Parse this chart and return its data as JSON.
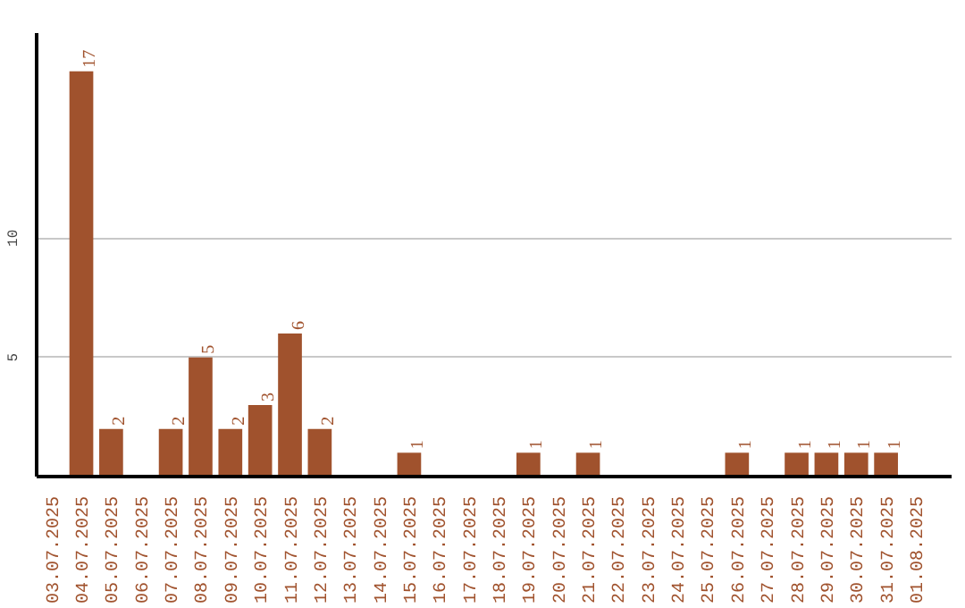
{
  "chart_data": {
    "type": "bar",
    "categories": [
      "03.07.2025",
      "04.07.2025",
      "05.07.2025",
      "06.07.2025",
      "07.07.2025",
      "08.07.2025",
      "09.07.2025",
      "10.07.2025",
      "11.07.2025",
      "12.07.2025",
      "13.07.2025",
      "14.07.2025",
      "15.07.2025",
      "16.07.2025",
      "17.07.2025",
      "18.07.2025",
      "19.07.2025",
      "20.07.2025",
      "21.07.2025",
      "22.07.2025",
      "23.07.2025",
      "24.07.2025",
      "25.07.2025",
      "26.07.2025",
      "27.07.2025",
      "28.07.2025",
      "29.07.2025",
      "30.07.2025",
      "31.07.2025",
      "01.08.2025"
    ],
    "values": [
      0,
      17,
      2,
      0,
      2,
      5,
      2,
      3,
      6,
      2,
      0,
      0,
      1,
      0,
      0,
      0,
      1,
      0,
      1,
      0,
      0,
      0,
      0,
      1,
      0,
      1,
      1,
      1,
      1,
      0
    ],
    "value_labels": [
      null,
      "17",
      "2",
      null,
      "2",
      "5",
      "2",
      "3",
      "6",
      "2",
      null,
      null,
      "1",
      null,
      null,
      null,
      "1",
      null,
      "1",
      null,
      null,
      null,
      null,
      "1",
      null,
      "1",
      "1",
      "1",
      "1",
      null
    ],
    "color": "#a0522d",
    "ylim": [
      0,
      18.6
    ],
    "yticks": [
      5,
      10
    ],
    "grid": "y"
  }
}
